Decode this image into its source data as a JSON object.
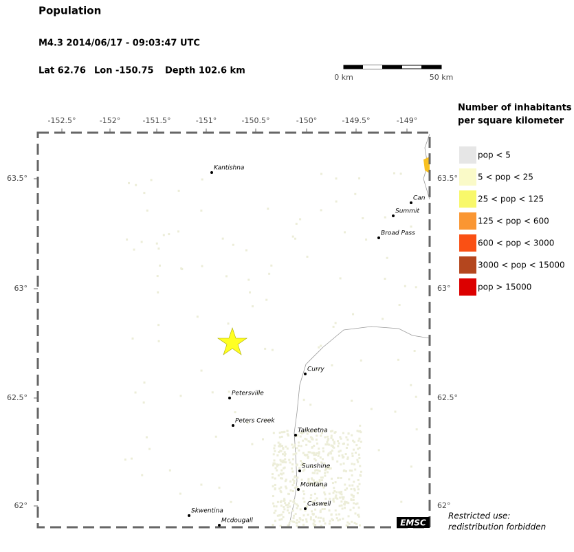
{
  "header": {
    "title": "Population",
    "event": "M4.3  2014/06/17 - 09:03:47 UTC",
    "lat": "Lat 62.76",
    "lon": "Lon -150.75",
    "depth": "Depth 102.6 km"
  },
  "scale_bar": {
    "start": "0 km",
    "end": "50 km"
  },
  "map": {
    "lon_ticks": [
      "-152.5°",
      "-152°",
      "-151.5°",
      "-151°",
      "-150.5°",
      "-150°",
      "-149.5°",
      "-149°"
    ],
    "lat_ticks": [
      "63.5°",
      "63°",
      "62.5°",
      "62°"
    ],
    "towns": [
      "Kantishna",
      "Can",
      "Summit",
      "Broad Pass",
      "Curry",
      "Petersville",
      "Peters Creek",
      "Talkeetna",
      "Sunshine",
      "Montana",
      "Caswell",
      "Skwentina",
      "Mcdougall"
    ],
    "logo": "EMSC"
  },
  "legend": {
    "title_line1": "Number of inhabitants",
    "title_line2": "per square kilometer",
    "items": [
      {
        "label": "pop < 5",
        "color": "#e6e6e6"
      },
      {
        "label": "5 < pop < 25",
        "color": "#fafac8"
      },
      {
        "label": "25 < pop < 125",
        "color": "#f8f86a"
      },
      {
        "label": "125 < pop < 600",
        "color": "#fa9632"
      },
      {
        "label": "600 < pop < 3000",
        "color": "#fa5014"
      },
      {
        "label": "3000 < pop < 15000",
        "color": "#b4461e"
      },
      {
        "label": "pop > 15000",
        "color": "#dc0000"
      }
    ]
  },
  "note": {
    "line1": "Restricted use:",
    "line2": "redistribution forbidden"
  }
}
